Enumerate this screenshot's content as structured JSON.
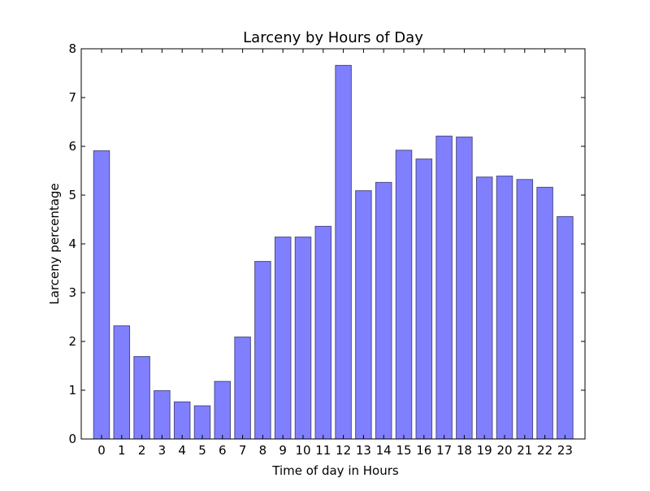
{
  "chart_data": {
    "type": "bar",
    "title": "Larceny by Hours of Day",
    "xlabel": "Time of day in Hours",
    "ylabel": "Larceny percentage",
    "categories": [
      "0",
      "1",
      "2",
      "3",
      "4",
      "5",
      "6",
      "7",
      "8",
      "9",
      "10",
      "11",
      "12",
      "13",
      "14",
      "15",
      "16",
      "17",
      "18",
      "19",
      "20",
      "21",
      "22",
      "23"
    ],
    "values": [
      5.91,
      2.32,
      1.69,
      0.99,
      0.76,
      0.68,
      1.18,
      2.09,
      3.64,
      4.14,
      4.14,
      4.36,
      7.66,
      5.09,
      5.26,
      5.92,
      5.74,
      6.21,
      6.19,
      5.37,
      5.39,
      5.32,
      5.16,
      4.56
    ],
    "ylim": [
      0,
      8
    ],
    "yticks": [
      0,
      1,
      2,
      3,
      4,
      5,
      6,
      7,
      8
    ],
    "grid": false,
    "colors": {
      "bar_fill": "#8080ff",
      "bar_stroke": "#4a4a8a",
      "axes": "#000000"
    }
  }
}
